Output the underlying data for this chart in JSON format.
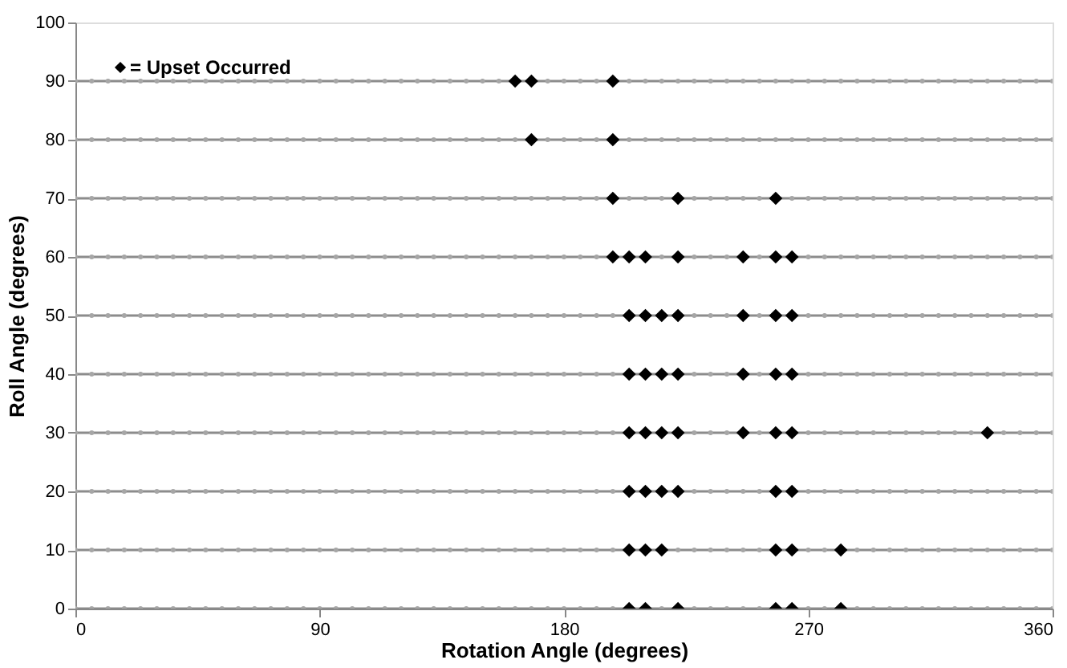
{
  "chart_data": {
    "type": "scatter",
    "xlabel": "Rotation Angle (degrees)",
    "ylabel": "Roll Angle (degrees)",
    "xlim": [
      0,
      360
    ],
    "xticks": [
      0,
      90,
      180,
      270,
      360
    ],
    "ylim": [
      0,
      100
    ],
    "yticks": [
      0,
      10,
      20,
      30,
      40,
      50,
      60,
      70,
      80,
      90,
      100
    ],
    "grid": false,
    "legend": "top left",
    "x": [
      0,
      6,
      12,
      18,
      24,
      30,
      36,
      42,
      48,
      54,
      60,
      66,
      72,
      78,
      84,
      90,
      96,
      102,
      108,
      114,
      120,
      126,
      132,
      138,
      144,
      150,
      156,
      162,
      168,
      174,
      180,
      186,
      192,
      198,
      204,
      210,
      216,
      222,
      228,
      234,
      240,
      246,
      252,
      258,
      264,
      270,
      276,
      282,
      288,
      294,
      300,
      306,
      312,
      318,
      324,
      330,
      336,
      342,
      348,
      354,
      360
    ],
    "series": [
      {
        "type": "line",
        "marker": "none",
        "color": "#8c8c8c",
        "x": [
          0,
          360
        ],
        "values": [
          0,
          0
        ]
      },
      {
        "type": "line",
        "marker": "none",
        "color": "#8c8c8c",
        "x": [
          0,
          360
        ],
        "values": [
          10,
          10
        ]
      },
      {
        "type": "line",
        "marker": "none",
        "color": "#8c8c8c",
        "x": [
          0,
          360
        ],
        "values": [
          20,
          20
        ]
      },
      {
        "type": "line",
        "marker": "none",
        "color": "#8c8c8c",
        "x": [
          0,
          360
        ],
        "values": [
          30,
          30
        ]
      },
      {
        "type": "line",
        "marker": "none",
        "color": "#8c8c8c",
        "x": [
          0,
          360
        ],
        "values": [
          40,
          40
        ]
      },
      {
        "type": "line",
        "marker": "none",
        "color": "#8c8c8c",
        "x": [
          0,
          360
        ],
        "values": [
          50,
          50
        ]
      },
      {
        "type": "line",
        "marker": "none",
        "color": "#8c8c8c",
        "x": [
          0,
          360
        ],
        "values": [
          60,
          60
        ]
      },
      {
        "type": "line",
        "marker": "none",
        "color": "#8c8c8c",
        "x": [
          0,
          360
        ],
        "values": [
          70,
          70
        ]
      },
      {
        "type": "line",
        "marker": "none",
        "color": "#8c8c8c",
        "x": [
          0,
          360
        ],
        "values": [
          80,
          80
        ]
      },
      {
        "type": "line",
        "marker": "none",
        "color": "#8c8c8c",
        "x": [
          0,
          360
        ],
        "values": [
          90,
          90
        ]
      },
      {
        "type": "scatter",
        "marker": "circle",
        "color": "#a6a6a6",
        "values": [
          0,
          0,
          0,
          0,
          0,
          0,
          0,
          0,
          0,
          0,
          0,
          0,
          0,
          0,
          0,
          0,
          0,
          0,
          0,
          0,
          0,
          0,
          0,
          0,
          0,
          0,
          0,
          0,
          0,
          0,
          0,
          0,
          0,
          0,
          null,
          null,
          0,
          null,
          0,
          0,
          0,
          0,
          0,
          null,
          null,
          0,
          0,
          null,
          0,
          0,
          0,
          0,
          0,
          0,
          0,
          0,
          0,
          0,
          0,
          0,
          0
        ]
      },
      {
        "type": "scatter",
        "marker": "circle",
        "color": "#a6a6a6",
        "values": [
          10,
          10,
          10,
          10,
          10,
          10,
          10,
          10,
          10,
          10,
          10,
          10,
          10,
          10,
          10,
          10,
          10,
          10,
          10,
          10,
          10,
          10,
          10,
          10,
          10,
          10,
          10,
          10,
          10,
          10,
          10,
          10,
          10,
          10,
          null,
          null,
          null,
          10,
          10,
          10,
          10,
          10,
          10,
          null,
          null,
          10,
          10,
          null,
          10,
          10,
          10,
          10,
          10,
          10,
          10,
          10,
          10,
          10,
          10,
          10,
          10
        ]
      },
      {
        "type": "scatter",
        "marker": "circle",
        "color": "#a6a6a6",
        "values": [
          20,
          20,
          20,
          20,
          20,
          20,
          20,
          20,
          20,
          20,
          20,
          20,
          20,
          20,
          20,
          20,
          20,
          20,
          20,
          20,
          20,
          20,
          20,
          20,
          20,
          20,
          20,
          20,
          20,
          20,
          20,
          20,
          20,
          20,
          null,
          null,
          null,
          null,
          20,
          20,
          20,
          20,
          20,
          null,
          null,
          20,
          20,
          20,
          20,
          20,
          20,
          20,
          20,
          20,
          20,
          20,
          20,
          20,
          20,
          20,
          20
        ]
      },
      {
        "type": "scatter",
        "marker": "circle",
        "color": "#a6a6a6",
        "values": [
          30,
          30,
          30,
          30,
          30,
          30,
          30,
          30,
          30,
          30,
          30,
          30,
          30,
          30,
          30,
          30,
          30,
          30,
          30,
          30,
          30,
          30,
          30,
          30,
          30,
          30,
          30,
          30,
          30,
          30,
          30,
          30,
          30,
          30,
          null,
          null,
          null,
          null,
          30,
          30,
          30,
          null,
          30,
          null,
          null,
          30,
          30,
          30,
          30,
          30,
          30,
          30,
          30,
          30,
          30,
          30,
          null,
          30,
          30,
          30,
          30
        ]
      },
      {
        "type": "scatter",
        "marker": "circle",
        "color": "#a6a6a6",
        "values": [
          40,
          40,
          40,
          40,
          40,
          40,
          40,
          40,
          40,
          40,
          40,
          40,
          40,
          40,
          40,
          40,
          40,
          40,
          40,
          40,
          40,
          40,
          40,
          40,
          40,
          40,
          40,
          40,
          40,
          40,
          40,
          40,
          40,
          40,
          null,
          null,
          null,
          null,
          40,
          40,
          40,
          null,
          40,
          null,
          null,
          40,
          40,
          40,
          40,
          40,
          40,
          40,
          40,
          40,
          40,
          40,
          40,
          40,
          40,
          40,
          40
        ]
      },
      {
        "type": "scatter",
        "marker": "circle",
        "color": "#a6a6a6",
        "values": [
          50,
          50,
          50,
          50,
          50,
          50,
          50,
          50,
          50,
          50,
          50,
          50,
          50,
          50,
          50,
          50,
          50,
          50,
          50,
          50,
          50,
          50,
          50,
          50,
          50,
          50,
          50,
          50,
          50,
          50,
          50,
          50,
          50,
          50,
          null,
          null,
          null,
          null,
          50,
          50,
          50,
          null,
          50,
          null,
          null,
          50,
          50,
          50,
          50,
          50,
          50,
          50,
          50,
          50,
          50,
          50,
          50,
          50,
          50,
          50,
          50
        ]
      },
      {
        "type": "scatter",
        "marker": "circle",
        "color": "#a6a6a6",
        "values": [
          60,
          60,
          60,
          60,
          60,
          60,
          60,
          60,
          60,
          60,
          60,
          60,
          60,
          60,
          60,
          60,
          60,
          60,
          60,
          60,
          60,
          60,
          60,
          60,
          60,
          60,
          60,
          60,
          60,
          60,
          60,
          60,
          60,
          null,
          null,
          null,
          60,
          null,
          60,
          60,
          60,
          null,
          60,
          null,
          null,
          60,
          60,
          60,
          60,
          60,
          60,
          60,
          60,
          60,
          60,
          60,
          60,
          60,
          60,
          60,
          60
        ]
      },
      {
        "type": "scatter",
        "marker": "circle",
        "color": "#a6a6a6",
        "values": [
          70,
          70,
          70,
          70,
          70,
          70,
          70,
          70,
          70,
          70,
          70,
          70,
          70,
          70,
          70,
          70,
          70,
          70,
          70,
          70,
          70,
          70,
          70,
          70,
          70,
          70,
          70,
          70,
          70,
          70,
          70,
          70,
          70,
          null,
          70,
          70,
          70,
          null,
          70,
          70,
          70,
          70,
          70,
          null,
          70,
          70,
          70,
          70,
          70,
          70,
          70,
          70,
          70,
          70,
          70,
          70,
          70,
          70,
          70,
          70,
          70
        ]
      },
      {
        "type": "scatter",
        "marker": "circle",
        "color": "#a6a6a6",
        "values": [
          80,
          80,
          80,
          80,
          80,
          80,
          80,
          80,
          80,
          80,
          80,
          80,
          80,
          80,
          80,
          80,
          80,
          80,
          80,
          80,
          80,
          80,
          80,
          80,
          80,
          80,
          80,
          80,
          null,
          80,
          80,
          80,
          80,
          null,
          80,
          80,
          80,
          80,
          80,
          80,
          80,
          80,
          80,
          80,
          80,
          80,
          80,
          80,
          80,
          80,
          80,
          80,
          80,
          80,
          80,
          80,
          80,
          80,
          80,
          80,
          80
        ]
      },
      {
        "type": "scatter",
        "marker": "circle",
        "color": "#a6a6a6",
        "values": [
          90,
          90,
          90,
          90,
          90,
          90,
          90,
          90,
          90,
          90,
          90,
          90,
          90,
          90,
          90,
          90,
          90,
          90,
          90,
          90,
          90,
          90,
          90,
          90,
          90,
          90,
          90,
          null,
          null,
          90,
          90,
          90,
          90,
          null,
          90,
          90,
          90,
          90,
          90,
          90,
          90,
          90,
          90,
          90,
          90,
          90,
          90,
          90,
          90,
          90,
          90,
          90,
          90,
          90,
          90,
          90,
          90,
          90,
          90,
          90,
          90
        ]
      },
      {
        "marker": "diamond",
        "name": "= Upset Occurred",
        "color": "#000000",
        "x": [
          204,
          210,
          222,
          258,
          264,
          282,
          204,
          210,
          216,
          258,
          264,
          282,
          204,
          210,
          216,
          222,
          258,
          264,
          204,
          210,
          216,
          222,
          246,
          258,
          264,
          336,
          204,
          210,
          216,
          222,
          246,
          258,
          264,
          204,
          210,
          216,
          222,
          246,
          258,
          264,
          198,
          204,
          210,
          222,
          246,
          258,
          264,
          198,
          222,
          258,
          168,
          198,
          162,
          168,
          198
        ],
        "values": [
          0,
          0,
          0,
          0,
          0,
          0,
          10,
          10,
          10,
          10,
          10,
          10,
          20,
          20,
          20,
          20,
          20,
          20,
          30,
          30,
          30,
          30,
          30,
          30,
          30,
          30,
          40,
          40,
          40,
          40,
          40,
          40,
          40,
          50,
          50,
          50,
          50,
          50,
          50,
          50,
          60,
          60,
          60,
          60,
          60,
          60,
          60,
          70,
          70,
          70,
          80,
          80,
          90,
          90,
          90
        ]
      }
    ]
  }
}
